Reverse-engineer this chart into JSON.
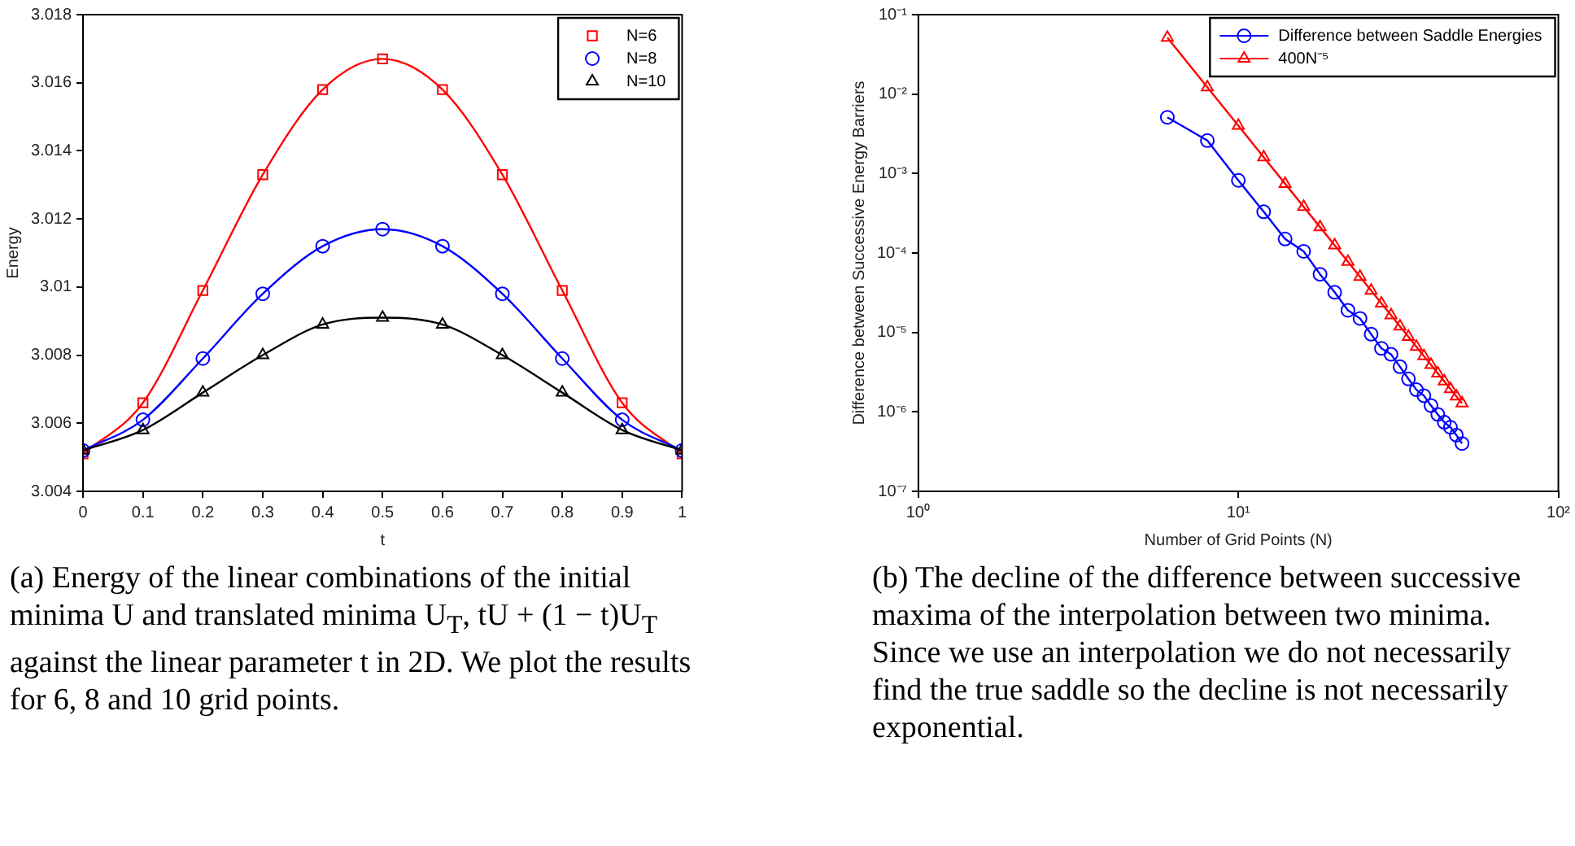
{
  "chart_data": [
    {
      "type": "line",
      "xlabel": "t",
      "ylabel": "Energy",
      "x": [
        0,
        0.1,
        0.2,
        0.3,
        0.4,
        0.5,
        0.6,
        0.7,
        0.8,
        0.9,
        1
      ],
      "series": [
        {
          "name": "N=6",
          "color": "#ff0000",
          "marker": "square",
          "values": [
            3.0051,
            3.0066,
            3.0099,
            3.0133,
            3.0158,
            3.0167,
            3.0158,
            3.0133,
            3.0099,
            3.0066,
            3.0051
          ]
        },
        {
          "name": "N=8",
          "color": "#0000ff",
          "marker": "circle",
          "values": [
            3.0052,
            3.0061,
            3.0079,
            3.0098,
            3.0112,
            3.0117,
            3.0112,
            3.0098,
            3.0079,
            3.0061,
            3.0052
          ]
        },
        {
          "name": "N=10",
          "color": "#000000",
          "marker": "triangle",
          "values": [
            3.0052,
            3.0058,
            3.0069,
            3.008,
            3.0089,
            3.0091,
            3.0089,
            3.008,
            3.0069,
            3.0058,
            3.0052
          ]
        }
      ],
      "xlim": [
        0,
        1
      ],
      "xticks": [
        0,
        0.1,
        0.2,
        0.3,
        0.4,
        0.5,
        0.6,
        0.7,
        0.8,
        0.9,
        1
      ],
      "ylim": [
        3.004,
        3.018
      ],
      "yticks": [
        3.004,
        3.006,
        3.008,
        3.01,
        3.012,
        3.014,
        3.016,
        3.018
      ],
      "grid": false,
      "legend": "top right",
      "line_style": "solid",
      "annotations": [
        "(a) Energy of the linear combinations of the initial minima U and translated minima U$_{T}$, tU + (1 − t)U$_{T}$ against the linear parameter t in 2D. We plot the results for 6, 8 and 10 grid points."
      ]
    },
    {
      "type": "line",
      "xlabel": "Number of Grid Points (N)",
      "ylabel": "Difference between Successive Energy Barriers",
      "log": "xy",
      "x": [
        6,
        8,
        10,
        12,
        14,
        16,
        18,
        20,
        22,
        24,
        26,
        28,
        30,
        32,
        34,
        36,
        38,
        40,
        42,
        44,
        46,
        48,
        50
      ],
      "series": [
        {
          "name": "Difference between Saddle Energies",
          "color": "#0000ff",
          "marker": "circle",
          "values": [
            0.0051,
            0.0026,
            0.00082,
            0.00033,
            0.00015,
            0.000105,
            5.4e-05,
            3.2e-05,
            1.9e-05,
            1.5e-05,
            9.5e-06,
            6.3e-06,
            5.3e-06,
            3.7e-06,
            2.6e-06,
            1.9e-06,
            1.6e-06,
            1.2e-06,
            9.3e-07,
            7.4e-07,
            6.4e-07,
            5.1e-07,
            4e-07
          ]
        },
        {
          "name": "400N⁻⁵",
          "color": "#ff0000",
          "marker": "triangle",
          "values": [
            0.0514,
            0.0122,
            0.004,
            0.00161,
            0.000744,
            0.000381,
            0.000212,
            0.000125,
            7.76e-05,
            5.02e-05,
            3.37e-05,
            2.32e-05,
            1.65e-05,
            1.19e-05,
            8.8e-06,
            6.62e-06,
            5.05e-06,
            3.91e-06,
            3.06e-06,
            2.43e-06,
            1.94e-06,
            1.57e-06,
            1.28e-06
          ]
        }
      ],
      "xlim": [
        1,
        100
      ],
      "xticks": [
        {
          "value": 1,
          "label": "10⁰"
        },
        {
          "value": 10,
          "label": "10¹"
        },
        {
          "value": 100,
          "label": "10²"
        }
      ],
      "ylim": [
        1e-07,
        0.1
      ],
      "yticks": [
        {
          "value": 1e-07,
          "label": "10⁻⁷"
        },
        {
          "value": 1e-06,
          "label": "10⁻⁶"
        },
        {
          "value": 1e-05,
          "label": "10⁻⁵"
        },
        {
          "value": 0.0001,
          "label": "10⁻⁴"
        },
        {
          "value": 0.001,
          "label": "10⁻³"
        },
        {
          "value": 0.01,
          "label": "10⁻²"
        },
        {
          "value": 0.1,
          "label": "10⁻¹"
        }
      ],
      "grid": false,
      "legend": "top right",
      "line_style": "solid",
      "annotations": [
        "(b) The decline of the difference between successive maxima of the interpolation between two minima. Since we use an interpolation we do not necessarily find the true saddle so the decline is not necessarily exponential."
      ]
    }
  ]
}
